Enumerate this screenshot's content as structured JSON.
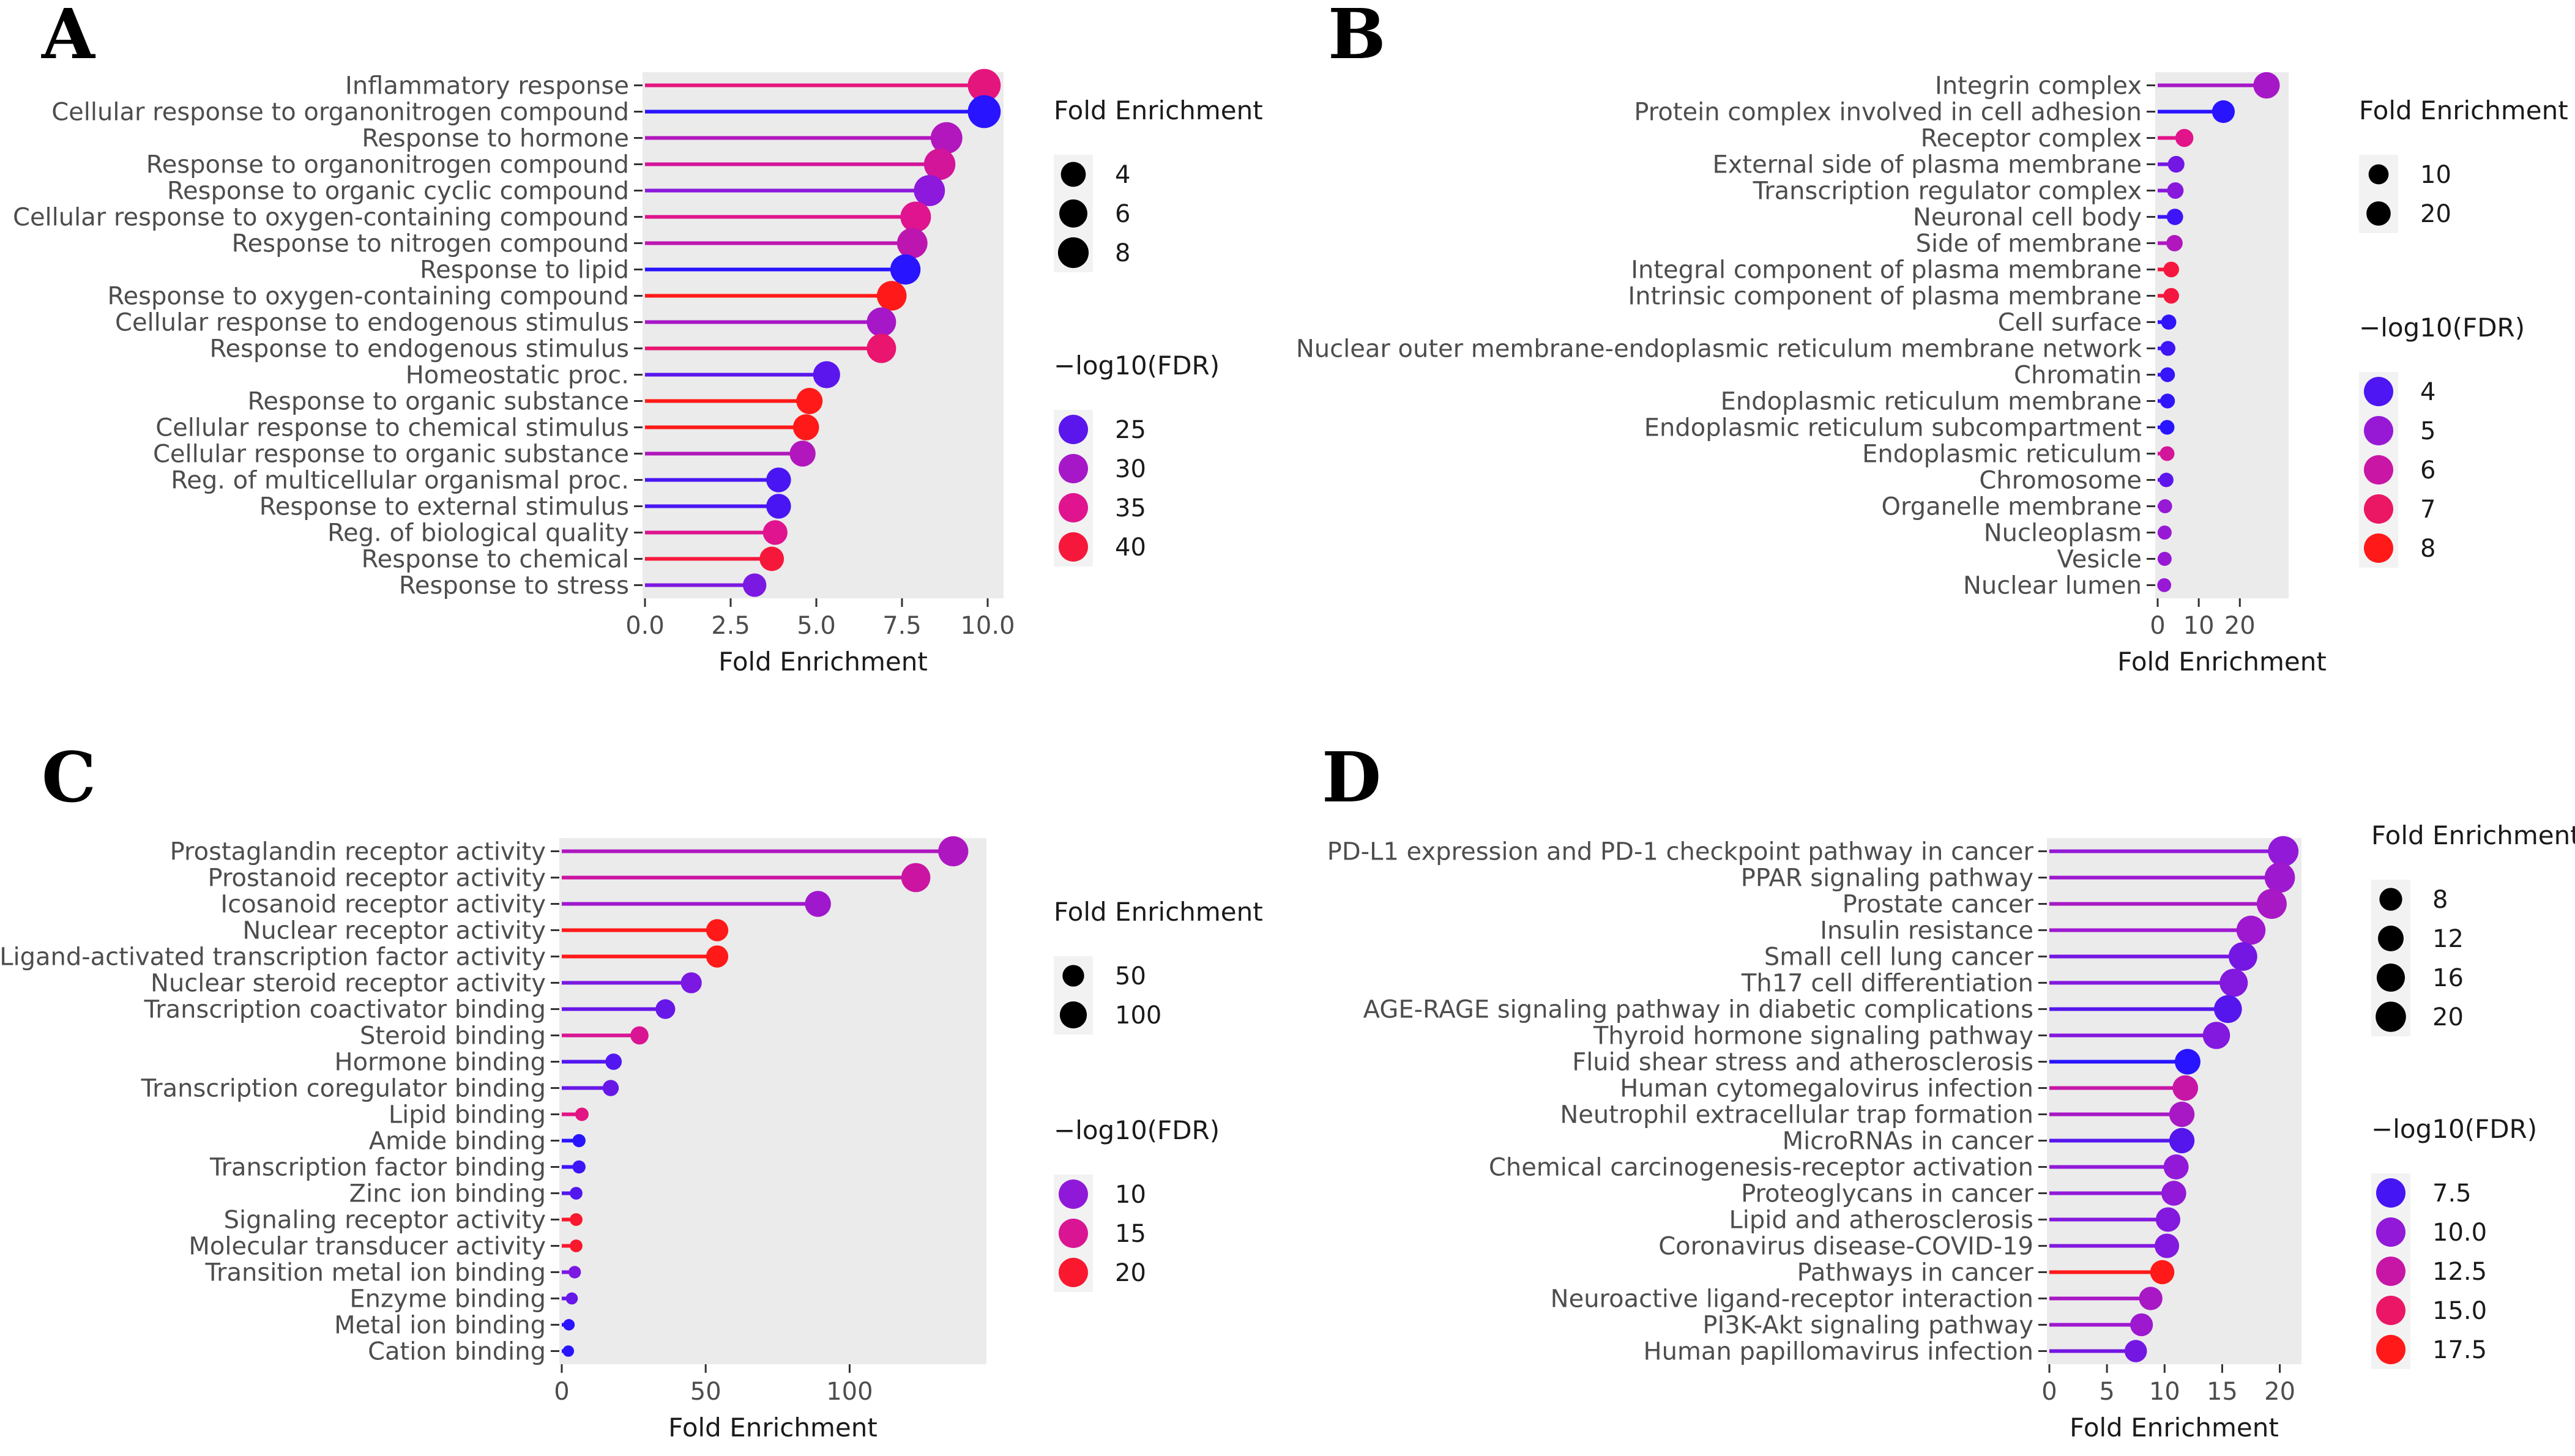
{
  "chart_data": [
    {
      "panel": "A",
      "type": "lollipop",
      "xlabel": "Fold Enrichment",
      "xlim": [
        0,
        10.0
      ],
      "xticks": [
        "0.0",
        "2.5",
        "5.0",
        "7.5",
        "10.0"
      ],
      "xtick_values": [
        0,
        2.5,
        5.0,
        7.5,
        10.0
      ],
      "categories": [
        "Inflammatory response",
        "Cellular response to organonitrogen compound",
        "Response to hormone",
        "Response to organonitrogen compound",
        "Response to organic cyclic compound",
        "Cellular response to oxygen-containing compound",
        "Response to nitrogen compound",
        "Response to lipid",
        "Response to oxygen-containing compound",
        "Cellular response to endogenous stimulus",
        "Response to endogenous stimulus",
        "Homeostatic proc.",
        "Response to organic substance",
        "Cellular response to chemical stimulus",
        "Cellular response to organic substance",
        "Reg. of multicellular organismal proc.",
        "Response to external stimulus",
        "Reg. of biological quality",
        "Response to chemical",
        "Response to stress"
      ],
      "values": [
        9.9,
        9.9,
        8.8,
        8.6,
        8.3,
        7.9,
        7.8,
        7.6,
        7.2,
        6.9,
        6.9,
        5.3,
        4.8,
        4.7,
        4.6,
        3.9,
        3.9,
        3.8,
        3.7,
        3.2
      ],
      "neg_log10_fdr": [
        36,
        22,
        31,
        34,
        28,
        35,
        32,
        22,
        42,
        30,
        37,
        25,
        42,
        42,
        31,
        24,
        24,
        35,
        40,
        27
      ],
      "size_legend": {
        "title": "Fold Enrichment",
        "values": [
          4,
          6,
          8
        ]
      },
      "color_legend": {
        "title": "−log10(FDR)",
        "values": [
          25,
          30,
          35,
          40
        ]
      },
      "color_range": [
        22,
        42
      ]
    },
    {
      "panel": "B",
      "type": "lollipop",
      "xlabel": "Fold Enrichment",
      "xlim": [
        0,
        28
      ],
      "xticks": [
        "0",
        "10",
        "20"
      ],
      "xtick_values": [
        0,
        10,
        20
      ],
      "categories": [
        "Integrin complex",
        "Protein complex involved in cell adhesion",
        "Receptor complex",
        "External side of plasma membrane",
        "Transcription regulator complex",
        "Neuronal cell body",
        "Side of membrane",
        "Integral component of plasma membrane",
        "Intrinsic component of plasma membrane",
        "Cell surface",
        "Nuclear outer membrane-endoplasmic reticulum membrane network",
        "Chromatin",
        "Endoplasmic reticulum membrane",
        "Endoplasmic reticulum subcompartment",
        "Endoplasmic reticulum",
        "Chromosome",
        "Organelle membrane",
        "Nucleoplasm",
        "Vesicle",
        "Nuclear lumen"
      ],
      "values": [
        26.5,
        16,
        6.5,
        4.5,
        4.3,
        4.2,
        4.1,
        3.3,
        3.3,
        2.7,
        2.5,
        2.4,
        2.4,
        2.3,
        2.3,
        2.1,
        1.8,
        1.7,
        1.7,
        1.6
      ],
      "neg_log10_fdr": [
        5.3,
        3.5,
        6.5,
        4.5,
        4.8,
        3.8,
        5.5,
        7.5,
        7.5,
        3.6,
        3.8,
        3.7,
        3.6,
        3.5,
        6.2,
        4.2,
        5.0,
        5.0,
        5.0,
        5.0
      ],
      "size_legend": {
        "title": "Fold Enrichment",
        "values": [
          10,
          20
        ]
      },
      "color_legend": {
        "title": "−log10(FDR)",
        "values": [
          4,
          5,
          6,
          7,
          8
        ]
      },
      "color_range": [
        3.5,
        8
      ]
    },
    {
      "panel": "C",
      "type": "lollipop",
      "xlabel": "Fold Enrichment",
      "xlim": [
        0,
        142
      ],
      "xticks": [
        "0",
        "50",
        "100"
      ],
      "xtick_values": [
        0,
        50,
        100
      ],
      "categories": [
        "Prostaglandin receptor activity",
        "Prostanoid receptor activity",
        "Icosanoid receptor activity",
        "Nuclear receptor activity",
        "Ligand-activated transcription factor activity",
        "Nuclear steroid receptor activity",
        "Transcription coactivator binding",
        "Steroid binding",
        "Hormone binding",
        "Transcription coregulator binding",
        "Lipid binding",
        "Amide binding",
        "Transcription factor binding",
        "Zinc ion binding",
        "Signaling receptor activity",
        "Molecular transducer activity",
        "Transition metal ion binding",
        "Enzyme binding",
        "Metal ion binding",
        "Cation binding"
      ],
      "values": [
        136,
        123,
        89,
        54,
        54,
        45,
        36,
        27,
        18,
        17,
        7,
        6,
        6,
        5,
        5,
        5,
        4.5,
        3.5,
        2.5,
        2.3
      ],
      "neg_log10_fdr": [
        12,
        14,
        11,
        21,
        21,
        9,
        8,
        15,
        7,
        8,
        16,
        5,
        6,
        7,
        20,
        20,
        9,
        8,
        5,
        5
      ],
      "size_legend": {
        "title": "Fold Enrichment",
        "values": [
          50,
          100
        ]
      },
      "color_legend": {
        "title": "−log10(FDR)",
        "values": [
          10,
          15,
          20
        ]
      },
      "color_range": [
        5,
        21
      ]
    },
    {
      "panel": "D",
      "type": "lollipop",
      "xlabel": "Fold Enrichment",
      "xlim": [
        0,
        20.5
      ],
      "xticks": [
        "0",
        "5",
        "10",
        "15",
        "20"
      ],
      "xtick_values": [
        0,
        5,
        10,
        15,
        20
      ],
      "categories": [
        "PD-L1 expression and PD-1 checkpoint pathway in cancer",
        "PPAR signaling pathway",
        "Prostate cancer",
        "Insulin resistance",
        "Small cell lung cancer",
        "Th17 cell differentiation",
        "AGE-RAGE signaling pathway in diabetic complications",
        "Thyroid hormone signaling pathway",
        "Fluid shear stress and atherosclerosis",
        "Human cytomegalovirus infection",
        "Neutrophil extracellular trap formation",
        "MicroRNAs in cancer",
        "Chemical carcinogenesis-receptor activation",
        "Proteoglycans in cancer",
        "Lipid and atherosclerosis",
        "Coronavirus disease-COVID-19",
        "Pathways in cancer",
        "Neuroactive ligand-receptor interaction",
        "PI3K-Akt signaling pathway",
        "Human papillomavirus infection"
      ],
      "values": [
        20.3,
        20,
        19.3,
        17.5,
        16.8,
        16,
        15.5,
        14.5,
        12,
        11.8,
        11.5,
        11.5,
        11,
        10.8,
        10.3,
        10.2,
        9.8,
        8.8,
        8,
        7.5
      ],
      "neg_log10_fdr": [
        10,
        10.5,
        11,
        10.5,
        9,
        9.5,
        8,
        9.5,
        6.5,
        12.5,
        11,
        8,
        10,
        10,
        9.5,
        9.5,
        17.5,
        11,
        10.5,
        9
      ],
      "size_legend": {
        "title": "Fold Enrichment",
        "values": [
          8,
          12,
          16,
          20
        ]
      },
      "color_legend": {
        "title": "−log10(FDR)",
        "values": [
          "7.5",
          "10.0",
          "12.5",
          "15.0",
          "17.5"
        ]
      },
      "color_range": [
        6.5,
        17.5
      ]
    }
  ]
}
